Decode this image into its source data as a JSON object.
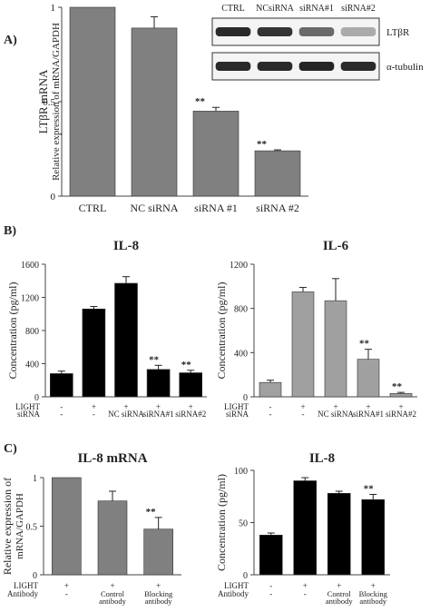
{
  "panel_labels": [
    "A)",
    "B)",
    "C)"
  ],
  "blot": {
    "lanes": [
      "CTRL",
      "NCsiRNA",
      "siRNA#1",
      "siRNA#2"
    ],
    "rows": [
      {
        "label": "LTβR",
        "intensity": [
          0.9,
          0.85,
          0.6,
          0.3
        ]
      },
      {
        "label": "α-tubulin",
        "intensity": [
          0.9,
          0.9,
          0.92,
          0.9
        ]
      }
    ]
  },
  "sig_mark": "**",
  "chart_data": [
    {
      "id": "A",
      "type": "bar",
      "title": "",
      "ylabel": "LTβR mRNA",
      "ylabel2": "Relative expression of mRNA/GAPDH",
      "ylim": [
        0,
        1
      ],
      "yticks": [
        0,
        0.5,
        1
      ],
      "categories": [
        "CTRL",
        "NC siRNA",
        "siRNA #1",
        "siRNA #2"
      ],
      "values": [
        1.0,
        0.89,
        0.45,
        0.24
      ],
      "errors": [
        0,
        0.06,
        0.02,
        0.005
      ],
      "significant": [
        false,
        false,
        true,
        true
      ],
      "color": "#808080",
      "row_labels": [],
      "row_values": []
    },
    {
      "id": "B1",
      "type": "bar",
      "title": "IL-8",
      "ylabel": "Concentration (pg/ml)",
      "ylabel2": "",
      "ylim": [
        0,
        1600
      ],
      "yticks": [
        0,
        400,
        800,
        1200,
        1600
      ],
      "categories": [
        "",
        "",
        "",
        "",
        ""
      ],
      "values": [
        280,
        1060,
        1370,
        330,
        290
      ],
      "errors": [
        30,
        30,
        80,
        50,
        30
      ],
      "significant": [
        false,
        false,
        false,
        true,
        true
      ],
      "color": "#000000",
      "row_labels": [
        "LIGHT",
        "siRNA"
      ],
      "row_values": [
        [
          "-",
          "+",
          "+",
          "+",
          "+"
        ],
        [
          "-",
          "-",
          "NC siRNA",
          "siRNA#1",
          "siRNA#2"
        ]
      ]
    },
    {
      "id": "B2",
      "type": "bar",
      "title": "IL-6",
      "ylabel": "Concentration (pg/ml)",
      "ylabel2": "",
      "ylim": [
        0,
        1200
      ],
      "yticks": [
        0,
        400,
        800,
        1200
      ],
      "categories": [
        "",
        "",
        "",
        "",
        ""
      ],
      "values": [
        130,
        950,
        870,
        340,
        30
      ],
      "errors": [
        20,
        40,
        200,
        90,
        10
      ],
      "significant": [
        false,
        false,
        false,
        true,
        true
      ],
      "color": "#a0a0a0",
      "row_labels": [
        "LIGHT",
        "siRNA"
      ],
      "row_values": [
        [
          "-",
          "+",
          "+",
          "+",
          "+"
        ],
        [
          "-",
          "-",
          "NC siRNA",
          "siRNA#1",
          "siRNA#2"
        ]
      ]
    },
    {
      "id": "C1",
      "type": "bar",
      "title": "IL-8 mRNA",
      "ylabel": "Relative expression of",
      "ylabel2": "mRNA/GAPDH",
      "ylim": [
        0,
        1
      ],
      "yticks": [
        0,
        0.5,
        1
      ],
      "categories": [
        "",
        "",
        ""
      ],
      "values": [
        1.0,
        0.76,
        0.47
      ],
      "errors": [
        0,
        0.1,
        0.12
      ],
      "significant": [
        false,
        false,
        true
      ],
      "color": "#808080",
      "row_labels": [
        "LIGHT",
        "Antibody"
      ],
      "row_values": [
        [
          "+",
          "+",
          "+"
        ],
        [
          "-",
          "Control antibody",
          "Blocking antibody"
        ]
      ]
    },
    {
      "id": "C2",
      "type": "bar",
      "title": "IL-8",
      "ylabel": "Concentration (pg/ml)",
      "ylabel2": "",
      "ylim": [
        0,
        100
      ],
      "yticks": [
        0,
        50,
        100
      ],
      "categories": [
        "",
        "",
        "",
        ""
      ],
      "values": [
        38,
        90,
        78,
        72
      ],
      "errors": [
        2,
        3,
        2,
        5
      ],
      "significant": [
        false,
        false,
        false,
        true
      ],
      "color": "#000000",
      "row_labels": [
        "LIGHT",
        "Antibody"
      ],
      "row_values": [
        [
          "-",
          "+",
          "+",
          "+"
        ],
        [
          "-",
          "-",
          "Control antibody",
          "Blocking antibody"
        ]
      ]
    }
  ]
}
